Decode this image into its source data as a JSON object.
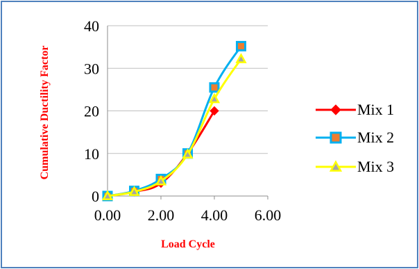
{
  "chart_data": {
    "type": "line",
    "title": "",
    "xlabel": "Load Cycle",
    "ylabel": "Cumulative  Ductility  Factor",
    "xlim": [
      0,
      6
    ],
    "ylim": [
      0,
      40
    ],
    "x_ticks": [
      "0.00",
      "2.00",
      "4.00",
      "6.00"
    ],
    "y_ticks": [
      "0",
      "10",
      "20",
      "30",
      "40"
    ],
    "x_tick_values": [
      0,
      2,
      4,
      6
    ],
    "y_tick_values": [
      0,
      10,
      20,
      30,
      40
    ],
    "grid": "horizontal",
    "legend": "right",
    "series": [
      {
        "name": "Mix 1",
        "color": "#ff0000",
        "marker": "diamond",
        "marker_color": "#ff0000",
        "x": [
          0,
          1,
          2,
          3,
          4
        ],
        "y": [
          0,
          1,
          3,
          10,
          20
        ]
      },
      {
        "name": "Mix 2",
        "color": "#00b0f0",
        "marker": "square",
        "marker_color": "#ed7d31",
        "x": [
          0,
          1,
          2,
          3,
          4,
          5
        ],
        "y": [
          0,
          1.2,
          4,
          10,
          25.5,
          35.2
        ]
      },
      {
        "name": "Mix 3",
        "color": "#ffff00",
        "marker": "triangle",
        "marker_color": "#a5a5a5",
        "x": [
          0,
          1,
          2,
          3,
          4,
          5
        ],
        "y": [
          0,
          1,
          3.5,
          9.8,
          22.8,
          32.2
        ]
      }
    ]
  }
}
